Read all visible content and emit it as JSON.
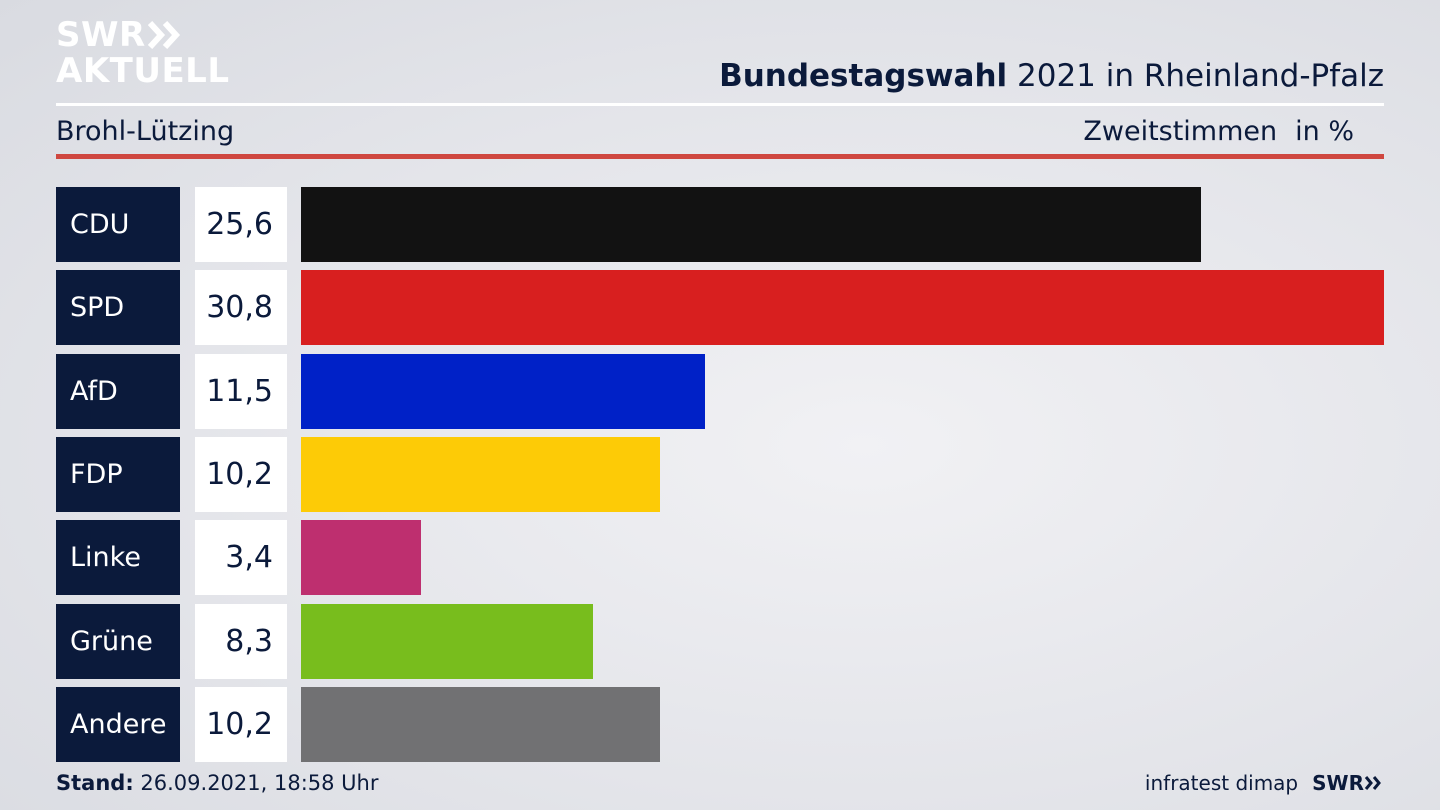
{
  "logo": {
    "line1": "SWR",
    "line2": "AKTUELL"
  },
  "header": {
    "title_strong": "Bundestagswahl",
    "title_rest": " 2021 in Rheinland-Pfalz",
    "region": "Brohl-Lützing",
    "metric": "Zweitstimmen",
    "unit": "in %"
  },
  "footer": {
    "stand_label": "Stand:",
    "stand_value": " 26.09.2021, 18:58 Uhr",
    "source": "infratest dimap",
    "brand": "SWR"
  },
  "chart_data": {
    "type": "bar",
    "orientation": "horizontal",
    "categories": [
      "CDU",
      "SPD",
      "AfD",
      "FDP",
      "Linke",
      "Grüne",
      "Andere"
    ],
    "values": [
      25.6,
      30.8,
      11.5,
      10.2,
      3.4,
      8.3,
      10.2
    ],
    "value_labels": [
      "25,6",
      "30,8",
      "11,5",
      "10,2",
      "3,4",
      "8,3",
      "10,2"
    ],
    "colors": [
      "#121212",
      "#d81f1f",
      "#0021c7",
      "#fdcb06",
      "#be2f6f",
      "#78bd1d",
      "#717173"
    ],
    "xlim": [
      0,
      30.8
    ],
    "grid": false
  }
}
